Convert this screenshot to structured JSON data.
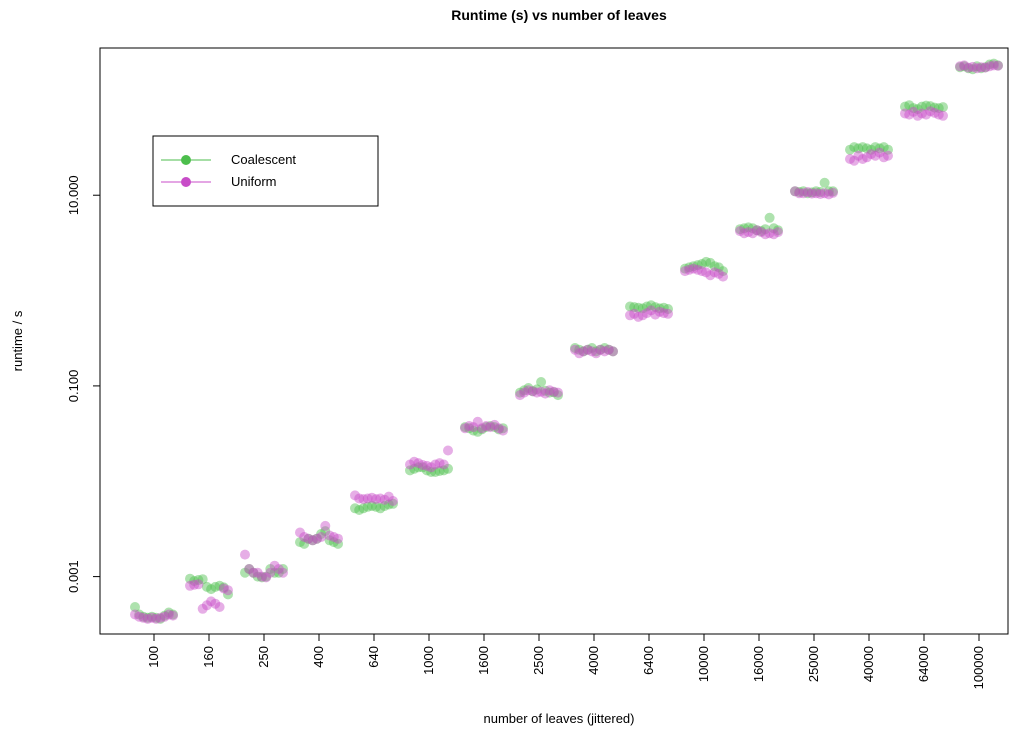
{
  "chart_data": {
    "type": "scatter",
    "title": "Runtime (s) vs number of leaves",
    "xlabel": "number of leaves (jittered)",
    "ylabel": "runtime / s",
    "y_scale": "log",
    "ylim": [
      0.00025,
      350
    ],
    "y_ticks": [
      0.001,
      0.1,
      10
    ],
    "y_tick_labels": [
      "0.001",
      "0.100",
      "10.000"
    ],
    "categories": [
      "100",
      "160",
      "250",
      "400",
      "640",
      "1000",
      "1600",
      "2500",
      "4000",
      "6400",
      "10000",
      "16000",
      "25000",
      "40000",
      "64000",
      "100000"
    ],
    "legend": {
      "position": "top-left",
      "entries": [
        "Coalescent",
        "Uniform"
      ]
    },
    "colors": {
      "Coalescent": "#4cbe4c",
      "Uniform": "#c84cc8"
    },
    "series": [
      {
        "name": "Coalescent",
        "values": [
          [
            0.00048,
            0.0004,
            0.00038,
            0.00037,
            0.00038,
            0.00037,
            0.00036,
            0.00039,
            0.00042,
            0.0004
          ],
          [
            0.00095,
            0.0009,
            0.00092,
            0.00094,
            0.00078,
            0.00074,
            0.00078,
            0.0008,
            0.00077,
            0.00065
          ],
          [
            0.0011,
            0.0012,
            0.0011,
            0.001,
            0.00098,
            0.001,
            0.0012,
            0.0011,
            0.0011,
            0.0012
          ],
          [
            0.0023,
            0.0022,
            0.0025,
            0.0024,
            0.0025,
            0.0028,
            0.003,
            0.0024,
            0.0023,
            0.0022
          ],
          [
            0.0052,
            0.005,
            0.0052,
            0.0054,
            0.0055,
            0.0054,
            0.0052,
            0.0055,
            0.0057,
            0.0058
          ],
          [
            0.013,
            0.0135,
            0.014,
            0.014,
            0.013,
            0.0125,
            0.0125,
            0.0128,
            0.013,
            0.0135
          ],
          [
            0.037,
            0.036,
            0.034,
            0.033,
            0.035,
            0.037,
            0.038,
            0.037,
            0.035,
            0.036
          ],
          [
            0.085,
            0.09,
            0.095,
            0.088,
            0.092,
            0.11,
            0.089,
            0.085,
            0.086,
            0.08
          ],
          [
            0.25,
            0.24,
            0.23,
            0.24,
            0.25,
            0.23,
            0.24,
            0.25,
            0.24,
            0.23
          ],
          [
            0.68,
            0.67,
            0.66,
            0.65,
            0.68,
            0.7,
            0.67,
            0.65,
            0.66,
            0.64
          ],
          [
            1.7,
            1.75,
            1.8,
            1.85,
            1.9,
            2.0,
            1.95,
            1.8,
            1.75,
            1.6
          ],
          [
            4.4,
            4.5,
            4.6,
            4.5,
            4.3,
            4.2,
            4.4,
            5.8,
            4.5,
            4.3
          ],
          [
            11,
            10.8,
            11,
            10.5,
            10.7,
            11,
            10.8,
            13.5,
            11,
            11
          ],
          [
            30,
            32,
            31,
            32,
            31,
            30,
            32,
            31,
            32,
            30
          ],
          [
            85,
            88,
            82,
            80,
            85,
            87,
            86,
            83,
            82,
            84
          ],
          [
            220,
            225,
            215,
            210,
            225,
            215,
            220,
            235,
            240,
            230
          ]
        ]
      },
      {
        "name": "Uniform",
        "values": [
          [
            0.0004,
            0.00038,
            0.00037,
            0.00036,
            0.00037,
            0.00036,
            0.00037,
            0.00038,
            0.0004,
            0.00039
          ],
          [
            0.0008,
            0.00082,
            0.00083,
            0.00046,
            0.0005,
            0.00055,
            0.00052,
            0.00048,
            0.00075,
            0.00072
          ],
          [
            0.0017,
            0.0012,
            0.0011,
            0.0011,
            0.001,
            0.00098,
            0.0011,
            0.0013,
            0.0012,
            0.0011
          ],
          [
            0.0029,
            0.0026,
            0.0025,
            0.0024,
            0.0025,
            0.0026,
            0.0034,
            0.0027,
            0.0026,
            0.0025
          ],
          [
            0.0071,
            0.0066,
            0.0065,
            0.0066,
            0.0067,
            0.0065,
            0.0066,
            0.0064,
            0.0069,
            0.0062
          ],
          [
            0.015,
            0.016,
            0.0155,
            0.0148,
            0.0145,
            0.014,
            0.015,
            0.0155,
            0.015,
            0.021
          ],
          [
            0.036,
            0.038,
            0.037,
            0.042,
            0.036,
            0.038,
            0.037,
            0.039,
            0.036,
            0.034
          ],
          [
            0.08,
            0.085,
            0.09,
            0.088,
            0.085,
            0.087,
            0.083,
            0.09,
            0.087,
            0.085
          ],
          [
            0.24,
            0.22,
            0.23,
            0.24,
            0.23,
            0.22,
            0.24,
            0.23,
            0.24,
            0.23
          ],
          [
            0.55,
            0.57,
            0.53,
            0.55,
            0.58,
            0.62,
            0.56,
            0.6,
            0.58,
            0.57
          ],
          [
            1.6,
            1.65,
            1.7,
            1.65,
            1.6,
            1.55,
            1.45,
            1.55,
            1.5,
            1.4
          ],
          [
            4.2,
            4.0,
            4.1,
            4.0,
            4.3,
            4.1,
            3.9,
            4.0,
            3.9,
            4.1
          ],
          [
            11,
            10.5,
            10.5,
            10.8,
            10.4,
            10.5,
            10.3,
            10.5,
            10.2,
            10.6
          ],
          [
            24,
            23,
            26,
            24,
            25,
            27,
            26,
            28,
            25,
            26
          ],
          [
            72,
            70,
            75,
            68,
            72,
            70,
            76,
            73,
            70,
            68
          ],
          [
            225,
            230,
            218,
            222,
            215,
            220,
            218,
            225,
            230,
            228
          ]
        ]
      }
    ]
  }
}
